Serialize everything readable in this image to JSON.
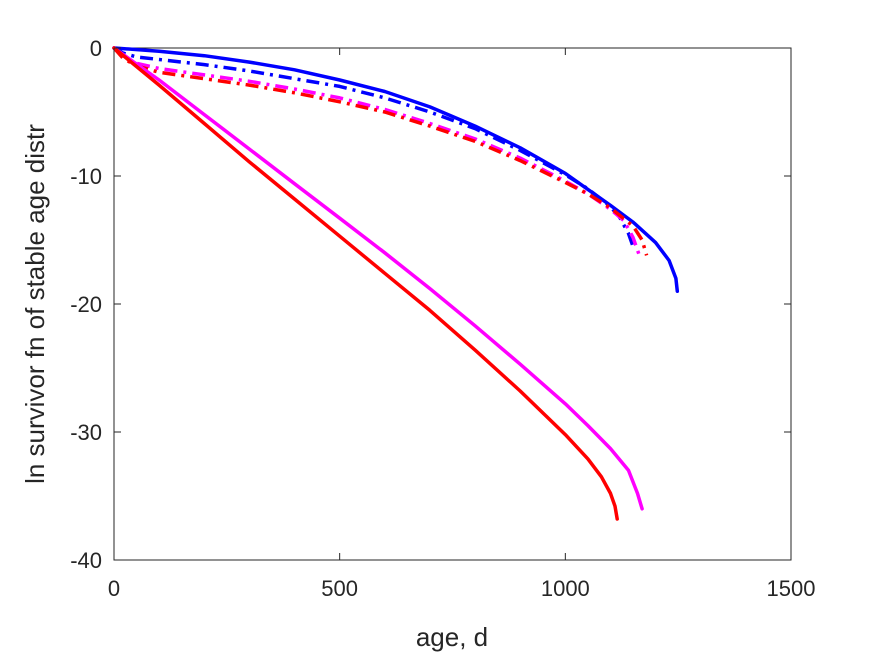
{
  "chart_data": {
    "type": "line",
    "title": "",
    "xlabel": "age, d",
    "ylabel": "ln survivor fn of stable age distr",
    "xlim": [
      0,
      1500
    ],
    "ylim": [
      -40,
      0
    ],
    "xticks": [
      0,
      500,
      1000,
      1500
    ],
    "yticks": [
      0,
      -10,
      -20,
      -30,
      -40
    ],
    "xtick_labels": [
      "0",
      "500",
      "1000",
      "1500"
    ],
    "ytick_labels": [
      "0",
      "-10",
      "-20",
      "-30",
      "-40"
    ],
    "grid": false,
    "legend": "none",
    "series": [
      {
        "color": "#0000ff",
        "style": "solid",
        "x": [
          0,
          100,
          200,
          300,
          400,
          500,
          600,
          700,
          800,
          900,
          1000,
          1100,
          1150,
          1200,
          1230,
          1245,
          1248
        ],
        "y": [
          0,
          -0.25,
          -0.6,
          -1.1,
          -1.7,
          -2.5,
          -3.4,
          -4.6,
          -6.1,
          -7.8,
          -9.8,
          -12.3,
          -13.6,
          -15.2,
          -16.6,
          -18.0,
          -19.0
        ]
      },
      {
        "color": "#0000ff",
        "style": "dashdot",
        "x": [
          0,
          20,
          50,
          100,
          200,
          300,
          400,
          500,
          600,
          700,
          800,
          900,
          1000,
          1050,
          1100,
          1120,
          1140,
          1150
        ],
        "y": [
          0,
          -0.4,
          -0.7,
          -0.9,
          -1.3,
          -1.8,
          -2.4,
          -3.0,
          -3.9,
          -5.0,
          -6.3,
          -8.0,
          -9.9,
          -11.0,
          -12.4,
          -13.2,
          -14.5,
          -15.5
        ]
      },
      {
        "color": "#ff00ff",
        "style": "dashdot",
        "x": [
          0,
          20,
          50,
          100,
          200,
          300,
          400,
          500,
          600,
          700,
          800,
          900,
          1000,
          1050,
          1100,
          1130,
          1150,
          1160,
          1165
        ],
        "y": [
          0,
          -0.6,
          -1.2,
          -1.6,
          -2.1,
          -2.6,
          -3.2,
          -3.9,
          -4.8,
          -5.9,
          -7.1,
          -8.6,
          -10.4,
          -11.4,
          -12.6,
          -13.5,
          -14.8,
          -15.8,
          -16.3
        ]
      },
      {
        "color": "#ff0000",
        "style": "dashdot",
        "x": [
          0,
          20,
          50,
          100,
          200,
          300,
          400,
          500,
          600,
          700,
          800,
          900,
          1000,
          1050,
          1100,
          1150,
          1170,
          1180
        ],
        "y": [
          0,
          -0.8,
          -1.4,
          -1.9,
          -2.4,
          -2.9,
          -3.5,
          -4.2,
          -5.0,
          -6.1,
          -7.3,
          -8.8,
          -10.5,
          -11.4,
          -12.5,
          -13.9,
          -15.0,
          -16.2
        ]
      },
      {
        "color": "#ff00ff",
        "style": "solid",
        "x": [
          0,
          100,
          200,
          300,
          400,
          500,
          600,
          700,
          800,
          900,
          1000,
          1050,
          1100,
          1140,
          1160,
          1170
        ],
        "y": [
          0,
          -2.5,
          -5.2,
          -7.9,
          -10.6,
          -13.3,
          -16.0,
          -18.8,
          -21.7,
          -24.7,
          -27.8,
          -29.5,
          -31.3,
          -33.0,
          -34.8,
          -36.0
        ]
      },
      {
        "color": "#ff0000",
        "style": "solid",
        "x": [
          0,
          100,
          200,
          300,
          400,
          500,
          600,
          700,
          800,
          900,
          1000,
          1050,
          1080,
          1100,
          1110,
          1115
        ],
        "y": [
          0,
          -2.9,
          -5.9,
          -8.9,
          -11.8,
          -14.7,
          -17.6,
          -20.5,
          -23.6,
          -26.8,
          -30.2,
          -32.1,
          -33.5,
          -34.8,
          -35.8,
          -36.8
        ]
      }
    ]
  }
}
